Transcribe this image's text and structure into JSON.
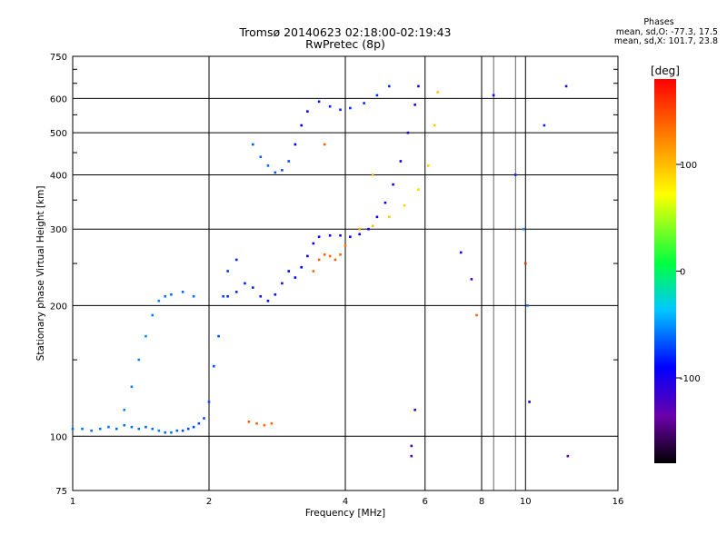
{
  "header": {
    "title_line1": "Tromsø 20140623 02:18:00-02:19:43",
    "title_line2": "RwPretec (8p)"
  },
  "phases": {
    "heading": "Phases",
    "o_line": "mean, sd,O: -77.3, 17.5",
    "x_line": "mean, sd,X: 101.7, 23.8"
  },
  "colorbar": {
    "unit_label": "[deg]",
    "ticks": [
      {
        "value": 100,
        "label": "100"
      },
      {
        "value": 0,
        "label": "0"
      },
      {
        "value": -100,
        "label": "-100"
      }
    ],
    "range": [
      -180,
      180
    ]
  },
  "chart_data": {
    "type": "scatter",
    "title": "Tromsø 20140623 02:18:00-02:19:43",
    "subtitle": "RwPretec (8p)",
    "xlabel": "Frequency [MHz]",
    "ylabel": "Stationary phase Virtual Height [km]",
    "xscale": "log",
    "yscale": "log",
    "xlim": [
      1,
      16
    ],
    "ylim": [
      75,
      750
    ],
    "xticks": [
      {
        "value": 1,
        "label": "1"
      },
      {
        "value": 2,
        "label": "2"
      },
      {
        "value": 4,
        "label": "4"
      },
      {
        "value": 6,
        "label": "6"
      },
      {
        "value": 8,
        "label": "8"
      },
      {
        "value": 10,
        "label": "10"
      },
      {
        "value": 16,
        "label": "16"
      }
    ],
    "yticks": [
      {
        "value": 75,
        "label": "75"
      },
      {
        "value": 100,
        "label": "100"
      },
      {
        "value": 200,
        "label": "200"
      },
      {
        "value": 300,
        "label": "300"
      },
      {
        "value": 400,
        "label": "400"
      },
      {
        "value": 500,
        "label": "500"
      },
      {
        "value": 600,
        "label": "600"
      },
      {
        "value": 750,
        "label": "750"
      }
    ],
    "grid": true,
    "color_scale": "phase [deg], -180 (black) to 180 (red)",
    "series": [
      {
        "values": [
          {
            "x": 1.0,
            "y": 104,
            "phase": -60
          },
          {
            "x": 1.05,
            "y": 104,
            "phase": -60
          },
          {
            "x": 1.1,
            "y": 103,
            "phase": -60
          },
          {
            "x": 1.15,
            "y": 104,
            "phase": -58
          },
          {
            "x": 1.2,
            "y": 105,
            "phase": -60
          },
          {
            "x": 1.25,
            "y": 104,
            "phase": -62
          },
          {
            "x": 1.3,
            "y": 106,
            "phase": -60
          },
          {
            "x": 1.35,
            "y": 105,
            "phase": -58
          },
          {
            "x": 1.4,
            "y": 104,
            "phase": -60
          },
          {
            "x": 1.45,
            "y": 105,
            "phase": -62
          },
          {
            "x": 1.5,
            "y": 104,
            "phase": -60
          },
          {
            "x": 1.55,
            "y": 103,
            "phase": -58
          },
          {
            "x": 1.6,
            "y": 102,
            "phase": -62
          },
          {
            "x": 1.65,
            "y": 102,
            "phase": -60
          },
          {
            "x": 1.7,
            "y": 103,
            "phase": -65
          },
          {
            "x": 1.75,
            "y": 103,
            "phase": -70
          },
          {
            "x": 1.8,
            "y": 104,
            "phase": -70
          },
          {
            "x": 1.85,
            "y": 105,
            "phase": -72
          },
          {
            "x": 1.9,
            "y": 107,
            "phase": -70
          },
          {
            "x": 1.95,
            "y": 110,
            "phase": -72
          },
          {
            "x": 2.0,
            "y": 120,
            "phase": -70
          },
          {
            "x": 2.05,
            "y": 145,
            "phase": -68
          },
          {
            "x": 2.1,
            "y": 170,
            "phase": -70
          },
          {
            "x": 2.15,
            "y": 210,
            "phase": -72
          },
          {
            "x": 2.2,
            "y": 240,
            "phase": -75
          },
          {
            "x": 2.3,
            "y": 255,
            "phase": -78
          }
        ]
      },
      {
        "values": [
          {
            "x": 1.3,
            "y": 115,
            "phase": -55
          },
          {
            "x": 1.35,
            "y": 130,
            "phase": -55
          },
          {
            "x": 1.4,
            "y": 150,
            "phase": -55
          },
          {
            "x": 1.45,
            "y": 170,
            "phase": -52
          },
          {
            "x": 1.5,
            "y": 190,
            "phase": -55
          },
          {
            "x": 1.55,
            "y": 205,
            "phase": -55
          },
          {
            "x": 1.6,
            "y": 210,
            "phase": -58
          },
          {
            "x": 1.65,
            "y": 212,
            "phase": -60
          },
          {
            "x": 1.75,
            "y": 215,
            "phase": -62
          },
          {
            "x": 1.85,
            "y": 210,
            "phase": -60
          }
        ]
      },
      {
        "values": [
          {
            "x": 2.2,
            "y": 210,
            "phase": -78
          },
          {
            "x": 2.3,
            "y": 215,
            "phase": -80
          },
          {
            "x": 2.4,
            "y": 225,
            "phase": -82
          },
          {
            "x": 2.5,
            "y": 220,
            "phase": -80
          },
          {
            "x": 2.6,
            "y": 210,
            "phase": -84
          },
          {
            "x": 2.7,
            "y": 205,
            "phase": -86
          },
          {
            "x": 2.8,
            "y": 212,
            "phase": -84
          },
          {
            "x": 2.9,
            "y": 225,
            "phase": -86
          },
          {
            "x": 3.0,
            "y": 240,
            "phase": -88
          },
          {
            "x": 3.1,
            "y": 232,
            "phase": -90
          },
          {
            "x": 3.2,
            "y": 245,
            "phase": -88
          },
          {
            "x": 3.3,
            "y": 260,
            "phase": -90
          },
          {
            "x": 3.4,
            "y": 278,
            "phase": -92
          },
          {
            "x": 3.5,
            "y": 288,
            "phase": -95
          },
          {
            "x": 3.7,
            "y": 290,
            "phase": -95
          },
          {
            "x": 3.9,
            "y": 290,
            "phase": -95
          },
          {
            "x": 4.1,
            "y": 288,
            "phase": -95
          },
          {
            "x": 4.3,
            "y": 292,
            "phase": -95
          },
          {
            "x": 4.5,
            "y": 300,
            "phase": -95
          },
          {
            "x": 4.7,
            "y": 320,
            "phase": -95
          },
          {
            "x": 4.9,
            "y": 345,
            "phase": -95
          },
          {
            "x": 5.1,
            "y": 380,
            "phase": -95
          },
          {
            "x": 5.3,
            "y": 430,
            "phase": -95
          },
          {
            "x": 5.5,
            "y": 500,
            "phase": -98
          },
          {
            "x": 5.7,
            "y": 580,
            "phase": -100
          },
          {
            "x": 5.8,
            "y": 640,
            "phase": -100
          }
        ]
      },
      {
        "values": [
          {
            "x": 2.5,
            "y": 470,
            "phase": -65
          },
          {
            "x": 2.6,
            "y": 440,
            "phase": -65
          },
          {
            "x": 2.7,
            "y": 420,
            "phase": -62
          },
          {
            "x": 2.8,
            "y": 405,
            "phase": -65
          },
          {
            "x": 2.9,
            "y": 410,
            "phase": -68
          },
          {
            "x": 3.0,
            "y": 430,
            "phase": -70
          },
          {
            "x": 3.1,
            "y": 470,
            "phase": -90
          },
          {
            "x": 3.2,
            "y": 520,
            "phase": -92
          },
          {
            "x": 3.3,
            "y": 560,
            "phase": -90
          },
          {
            "x": 3.5,
            "y": 590,
            "phase": -85
          },
          {
            "x": 3.7,
            "y": 575,
            "phase": -82
          },
          {
            "x": 3.9,
            "y": 565,
            "phase": -82
          },
          {
            "x": 4.1,
            "y": 570,
            "phase": -80
          },
          {
            "x": 4.4,
            "y": 585,
            "phase": -78
          },
          {
            "x": 4.7,
            "y": 610,
            "phase": -78
          },
          {
            "x": 5.0,
            "y": 640,
            "phase": -78
          }
        ]
      },
      {
        "values": [
          {
            "x": 3.4,
            "y": 240,
            "phase": 135
          },
          {
            "x": 3.5,
            "y": 255,
            "phase": 140
          },
          {
            "x": 3.6,
            "y": 262,
            "phase": 138
          },
          {
            "x": 3.7,
            "y": 260,
            "phase": 136
          },
          {
            "x": 3.8,
            "y": 255,
            "phase": 140
          },
          {
            "x": 3.9,
            "y": 262,
            "phase": 135
          },
          {
            "x": 4.0,
            "y": 275,
            "phase": 130
          },
          {
            "x": 4.3,
            "y": 300,
            "phase": 110
          },
          {
            "x": 4.6,
            "y": 305,
            "phase": 100
          },
          {
            "x": 5.0,
            "y": 320,
            "phase": 95
          },
          {
            "x": 5.4,
            "y": 340,
            "phase": 90
          },
          {
            "x": 5.8,
            "y": 370,
            "phase": 88
          },
          {
            "x": 6.1,
            "y": 420,
            "phase": 90
          },
          {
            "x": 6.3,
            "y": 520,
            "phase": 95
          },
          {
            "x": 6.4,
            "y": 620,
            "phase": 95
          }
        ]
      },
      {
        "values": [
          {
            "x": 2.45,
            "y": 108,
            "phase": 140
          },
          {
            "x": 2.55,
            "y": 107,
            "phase": 140
          },
          {
            "x": 2.65,
            "y": 106,
            "phase": 135
          },
          {
            "x": 2.75,
            "y": 107,
            "phase": 140
          },
          {
            "x": 3.6,
            "y": 470,
            "phase": 140
          },
          {
            "x": 4.6,
            "y": 400,
            "phase": 100
          }
        ]
      },
      {
        "values": [
          {
            "x": 5.6,
            "y": 95,
            "phase": -120
          },
          {
            "x": 5.6,
            "y": 90,
            "phase": -120
          },
          {
            "x": 5.7,
            "y": 115,
            "phase": -110
          },
          {
            "x": 7.2,
            "y": 265,
            "phase": -100
          },
          {
            "x": 7.6,
            "y": 230,
            "phase": -120
          },
          {
            "x": 7.8,
            "y": 190,
            "phase": 140
          },
          {
            "x": 8.5,
            "y": 610,
            "phase": -100
          },
          {
            "x": 9.5,
            "y": 400,
            "phase": -80
          },
          {
            "x": 9.9,
            "y": 300,
            "phase": -50
          },
          {
            "x": 10.0,
            "y": 250,
            "phase": 160
          },
          {
            "x": 10.1,
            "y": 200,
            "phase": -60
          },
          {
            "x": 10.2,
            "y": 120,
            "phase": -90
          },
          {
            "x": 11.0,
            "y": 520,
            "phase": -80
          },
          {
            "x": 12.3,
            "y": 640,
            "phase": -110
          },
          {
            "x": 12.4,
            "y": 90,
            "phase": -140
          }
        ]
      }
    ]
  }
}
